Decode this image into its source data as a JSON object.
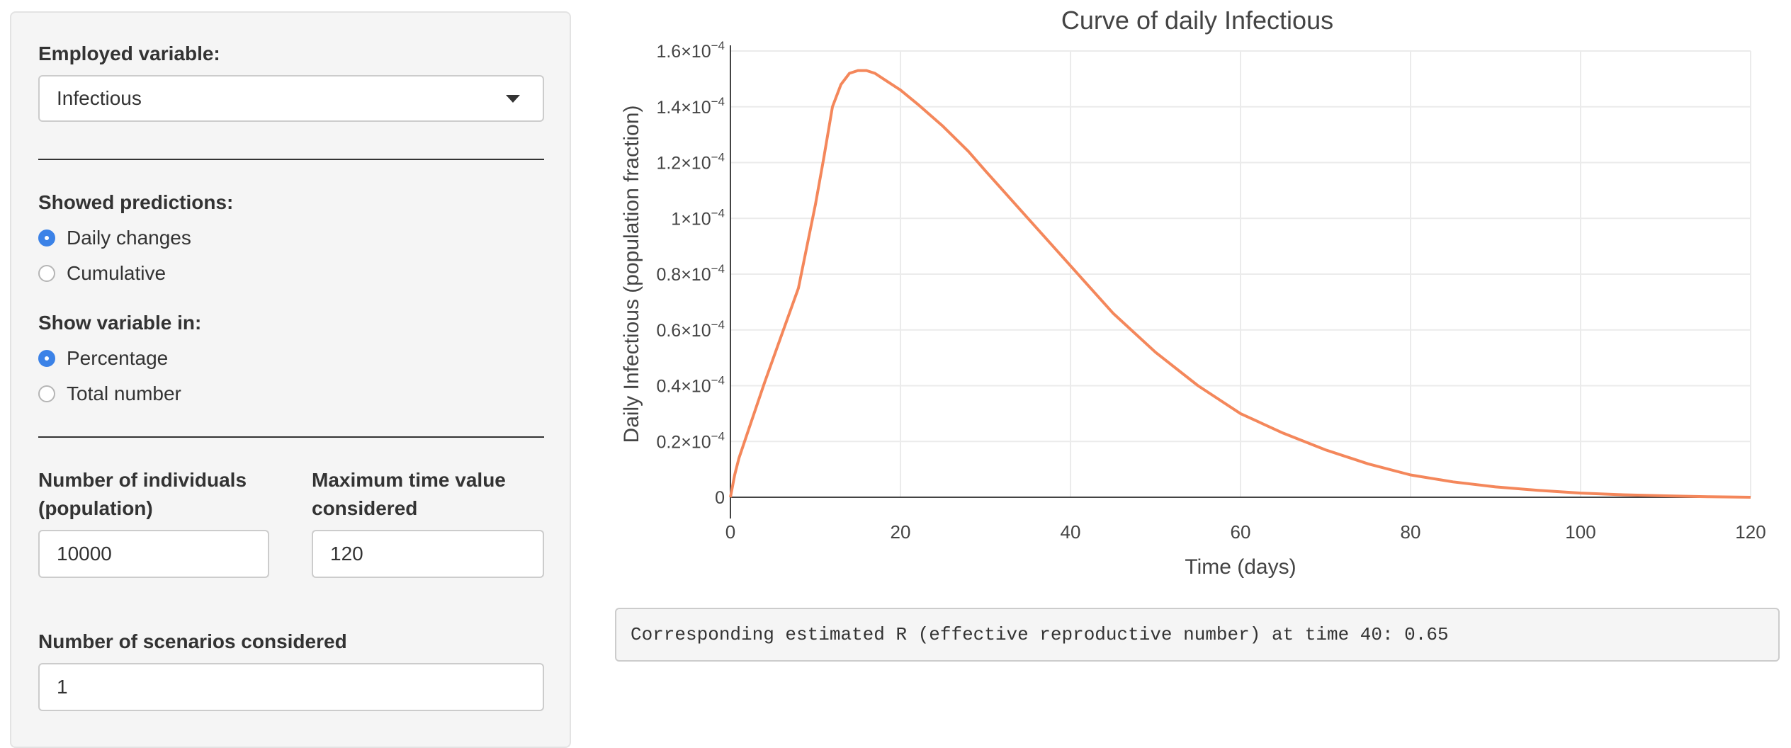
{
  "sidebar": {
    "variable_label": "Employed variable:",
    "variable_value": "Infectious",
    "predictions_label": "Showed predictions:",
    "predictions_options": [
      "Daily changes",
      "Cumulative"
    ],
    "predictions_selected": 0,
    "showin_label": "Show variable in:",
    "showin_options": [
      "Percentage",
      "Total number"
    ],
    "showin_selected": 0,
    "population_label_1": "Number of individuals",
    "population_label_2": "(population)",
    "population_value": "10000",
    "maxtime_label_1": "Maximum time value",
    "maxtime_label_2": "considered",
    "maxtime_value": "120",
    "scenarios_label": "Number of scenarios considered",
    "scenarios_value": "1"
  },
  "output_text": "Corresponding estimated R (effective reproductive number) at time 40: 0.65",
  "chart_data": {
    "type": "line",
    "title": "Curve of daily Infectious",
    "xlabel": "Time (days)",
    "ylabel": "Daily Infectious (population fraction)",
    "xlim": [
      0,
      120
    ],
    "ylim": [
      0,
      0.00016
    ],
    "x_ticks": [
      0,
      20,
      40,
      60,
      80,
      100,
      120
    ],
    "y_ticks": [
      {
        "value": 0,
        "mantissa": "0",
        "exp": ""
      },
      {
        "value": 2e-05,
        "mantissa": "0.2×10",
        "exp": "−4"
      },
      {
        "value": 4e-05,
        "mantissa": "0.4×10",
        "exp": "−4"
      },
      {
        "value": 6e-05,
        "mantissa": "0.6×10",
        "exp": "−4"
      },
      {
        "value": 8e-05,
        "mantissa": "0.8×10",
        "exp": "−4"
      },
      {
        "value": 0.0001,
        "mantissa": "1×10",
        "exp": "−4"
      },
      {
        "value": 0.00012,
        "mantissa": "1.2×10",
        "exp": "−4"
      },
      {
        "value": 0.00014,
        "mantissa": "1.4×10",
        "exp": "−4"
      },
      {
        "value": 0.00016,
        "mantissa": "1.6×10",
        "exp": "−4"
      }
    ],
    "grid": true,
    "line_color": "#f4875b",
    "series": [
      {
        "x": [
          0,
          0.5,
          1,
          2,
          4,
          6,
          8,
          9,
          10,
          11,
          12,
          13,
          14,
          15,
          16,
          17,
          18,
          20,
          22,
          25,
          28,
          30,
          35,
          40,
          45,
          50,
          55,
          60,
          65,
          70,
          75,
          80,
          85,
          90,
          95,
          100,
          105,
          110,
          115,
          120
        ],
        "y": [
          0,
          8e-06,
          1.4e-05,
          2.3e-05,
          4.1e-05,
          5.8e-05,
          7.5e-05,
          9e-05,
          0.000105,
          0.000122,
          0.00014,
          0.000148,
          0.000152,
          0.000153,
          0.000153,
          0.000152,
          0.00015,
          0.000146,
          0.000141,
          0.000133,
          0.000124,
          0.000117,
          0.0001,
          8.3e-05,
          6.6e-05,
          5.2e-05,
          4e-05,
          3e-05,
          2.3e-05,
          1.7e-05,
          1.2e-05,
          8e-06,
          5.5e-06,
          3.7e-06,
          2.5e-06,
          1.5e-06,
          9e-07,
          5e-07,
          2e-07,
          0
        ]
      }
    ]
  }
}
